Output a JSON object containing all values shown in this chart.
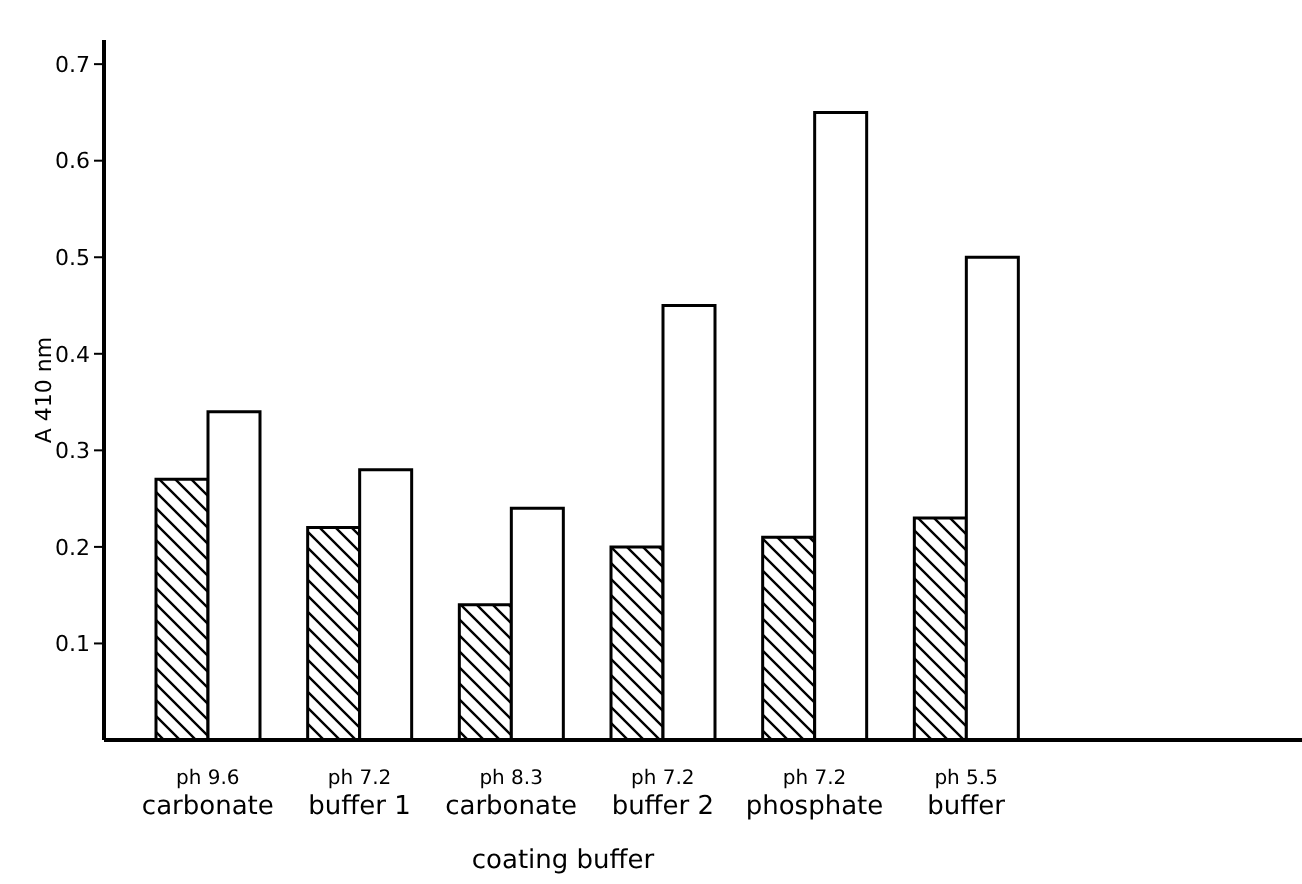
{
  "chart_data": {
    "type": "bar",
    "xlabel": "coating buffer",
    "ylabel": "A 410 nm",
    "categories": [
      "ph 9.6\ncarbonate",
      "ph 7.2\nbuffer 1",
      "ph 8.3\ncarbonate",
      "ph 7.2\nbuffer 2",
      "ph 7.2\nphosphate",
      "ph 5.5\nbuffer"
    ],
    "series": [
      {
        "color": "#000000",
        "values": [
          0.27,
          0.22,
          0.14,
          0.2,
          0.21,
          0.23
        ]
      },
      {
        "values": [
          0.34,
          0.28,
          0.24,
          0.45,
          0.65,
          0.5
        ]
      }
    ],
    "ylim": [
      0,
      0.725
    ],
    "yticks": [
      0.1,
      0.2,
      0.3,
      0.4,
      0.5,
      0.6,
      0.7
    ],
    "grid": false,
    "legend": false
  }
}
